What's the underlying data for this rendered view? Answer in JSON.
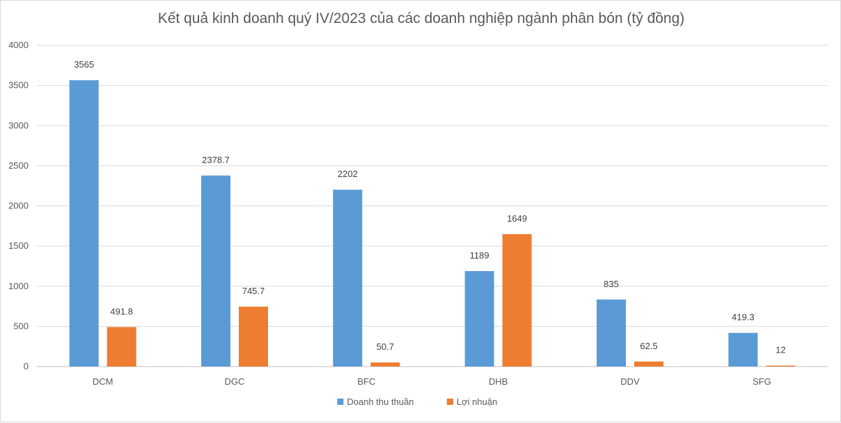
{
  "chart_data": {
    "type": "bar",
    "title": "Kết quả kinh doanh quý IV/2023 của các doanh nghiệp ngành phân bón (tỷ đồng)",
    "categories": [
      "DCM",
      "DGC",
      "BFC",
      "DHB",
      "DDV",
      "SFG"
    ],
    "series": [
      {
        "name": "Doanh thu thuần",
        "color": "#5b9bd5",
        "values": [
          3565,
          2378.7,
          2202,
          1189,
          835,
          419.3
        ],
        "labels": [
          "3565",
          "2378.7",
          "2202",
          "1189",
          "835",
          "419.3"
        ]
      },
      {
        "name": "Lợi nhuận",
        "color": "#ed7d31",
        "values": [
          491.8,
          745.7,
          50.7,
          1649,
          62.5,
          12
        ],
        "labels": [
          "491.8",
          "745.7",
          "50.7",
          "1649",
          "62.5",
          "12"
        ]
      }
    ],
    "ylim": [
      0,
      4000
    ],
    "yticks": [
      0,
      500,
      1000,
      1500,
      2000,
      2500,
      3000,
      3500,
      4000
    ],
    "grid": true,
    "legend_position": "bottom",
    "xlabel": "",
    "ylabel": ""
  }
}
